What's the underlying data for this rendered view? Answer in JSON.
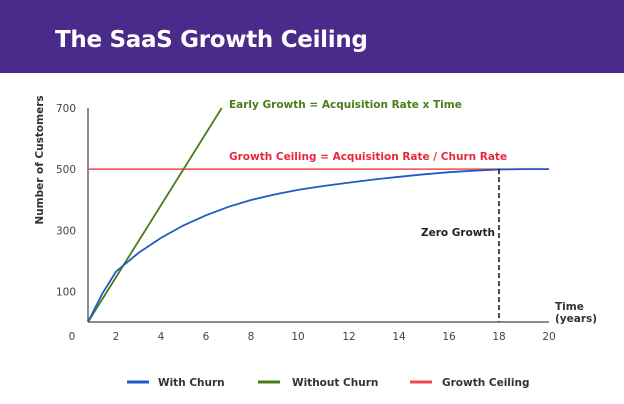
{
  "header": {
    "title": "The SaaS Growth Ceiling"
  },
  "chart_data": {
    "type": "line",
    "title": "The SaaS Growth Ceiling",
    "xlabel": "Time (years)",
    "xlabel_lines": [
      "Time",
      "(years)"
    ],
    "ylabel": "Number of Customers",
    "xlim": [
      0,
      20
    ],
    "ylim": [
      0,
      700
    ],
    "xticks": [
      0,
      2,
      4,
      6,
      8,
      10,
      12,
      14,
      16,
      18,
      20
    ],
    "yticks": [
      100,
      300,
      500,
      700
    ],
    "grid": false,
    "legend_placement": "bottom",
    "series": [
      {
        "name": "With Churn",
        "color": "#1f5bc4",
        "x": [
          0,
          1,
          2,
          3,
          4,
          5,
          6,
          7,
          8,
          9,
          10,
          11,
          12,
          13,
          14,
          15,
          16,
          17,
          18,
          19,
          20
        ],
        "y": [
          0,
          91,
          165,
          226,
          275,
          316,
          349,
          377,
          399,
          417,
          432,
          445,
          456,
          466,
          475,
          483,
          490,
          495,
          499,
          500,
          500
        ]
      },
      {
        "name": "Without Churn",
        "color": "#4a7c1a",
        "x": [
          0,
          6.7
        ],
        "y": [
          0,
          700
        ]
      },
      {
        "name": "Growth Ceiling",
        "color": "#f0484f",
        "x": [
          0,
          20
        ],
        "y": [
          500,
          500
        ]
      }
    ],
    "annotations": [
      {
        "text": "Early Growth = Acquisition Rate x Time",
        "color": "#4a7c1a"
      },
      {
        "text": "Growth Ceiling = Acquisition Rate / Churn Rate",
        "color": "#e8283a"
      },
      {
        "text": "Zero Growth",
        "x": 18
      }
    ]
  }
}
